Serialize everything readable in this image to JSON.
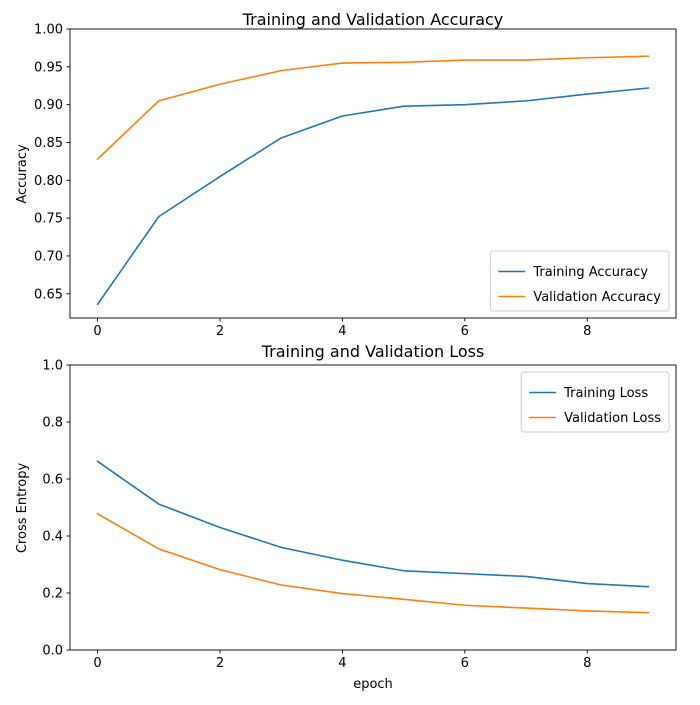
{
  "figure": {
    "background": "#ffffff",
    "text_color": "#000000",
    "spine_color": "#000000"
  },
  "chart_data": [
    {
      "type": "line",
      "title": "Training and Validation Accuracy",
      "xlabel": "",
      "ylabel": "Accuracy",
      "x": [
        0,
        1,
        2,
        3,
        4,
        5,
        6,
        7,
        8,
        9
      ],
      "series": [
        {
          "name": "Training Accuracy",
          "color": "#1f77b4",
          "values": [
            0.636,
            0.752,
            0.805,
            0.856,
            0.885,
            0.898,
            0.9,
            0.905,
            0.914,
            0.922
          ]
        },
        {
          "name": "Validation Accuracy",
          "color": "#ff7f0e",
          "values": [
            0.828,
            0.905,
            0.927,
            0.945,
            0.955,
            0.956,
            0.959,
            0.959,
            0.962,
            0.964
          ]
        }
      ],
      "xlim": [
        -0.45,
        9.45
      ],
      "ylim": [
        0.618,
        1.0
      ],
      "xticks": [
        0,
        2,
        4,
        6,
        8
      ],
      "xtick_labels": [
        "0",
        "2",
        "4",
        "6",
        "8"
      ],
      "yticks": [
        0.65,
        0.7,
        0.75,
        0.8,
        0.85,
        0.9,
        0.95,
        1.0
      ],
      "ytick_labels": [
        "0.65",
        "0.70",
        "0.75",
        "0.80",
        "0.85",
        "0.90",
        "0.95",
        "1.00"
      ],
      "grid": false,
      "legend": {
        "position": "lower right",
        "entries": [
          "Training Accuracy",
          "Validation Accuracy"
        ]
      }
    },
    {
      "type": "line",
      "title": "Training and Validation Loss",
      "xlabel": "epoch",
      "ylabel": "Cross Entropy",
      "x": [
        0,
        1,
        2,
        3,
        4,
        5,
        6,
        7,
        8,
        9
      ],
      "series": [
        {
          "name": "Training Loss",
          "color": "#1f77b4",
          "values": [
            0.662,
            0.512,
            0.43,
            0.36,
            0.315,
            0.278,
            0.268,
            0.258,
            0.233,
            0.222
          ]
        },
        {
          "name": "Validation Loss",
          "color": "#ff7f0e",
          "values": [
            0.478,
            0.355,
            0.282,
            0.228,
            0.198,
            0.178,
            0.157,
            0.147,
            0.137,
            0.131
          ]
        }
      ],
      "xlim": [
        -0.45,
        9.45
      ],
      "ylim": [
        0.0,
        1.0
      ],
      "xticks": [
        0,
        2,
        4,
        6,
        8
      ],
      "xtick_labels": [
        "0",
        "2",
        "4",
        "6",
        "8"
      ],
      "yticks": [
        0.0,
        0.2,
        0.4,
        0.6,
        0.8,
        1.0
      ],
      "ytick_labels": [
        "0.0",
        "0.2",
        "0.4",
        "0.6",
        "0.8",
        "1.0"
      ],
      "grid": false,
      "legend": {
        "position": "upper right",
        "entries": [
          "Training Loss",
          "Validation Loss"
        ]
      }
    }
  ]
}
